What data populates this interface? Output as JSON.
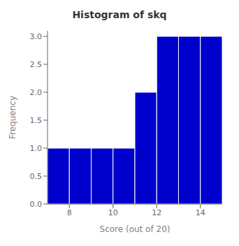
{
  "chart_data": {
    "type": "histogram",
    "title": "Histogram of skq",
    "xlabel": "Score (out of 20)",
    "ylabel": "Frequency",
    "bins": [
      7,
      8,
      9,
      10,
      11,
      12,
      13,
      14,
      15
    ],
    "values": [
      1,
      1,
      1,
      1,
      2,
      3,
      3,
      3
    ],
    "color": "#0000CC",
    "xlim": [
      7,
      15
    ],
    "ylim": [
      0,
      3.1
    ],
    "xticks": [
      8,
      10,
      12,
      14
    ],
    "yticks": [
      {
        "value": 0,
        "label": "0.0"
      },
      0.5,
      {
        "value": 1,
        "label": "1.0"
      },
      1.5,
      {
        "value": 2,
        "label": "2.0"
      },
      2.5,
      {
        "value": 3,
        "label": "3.0"
      }
    ]
  }
}
